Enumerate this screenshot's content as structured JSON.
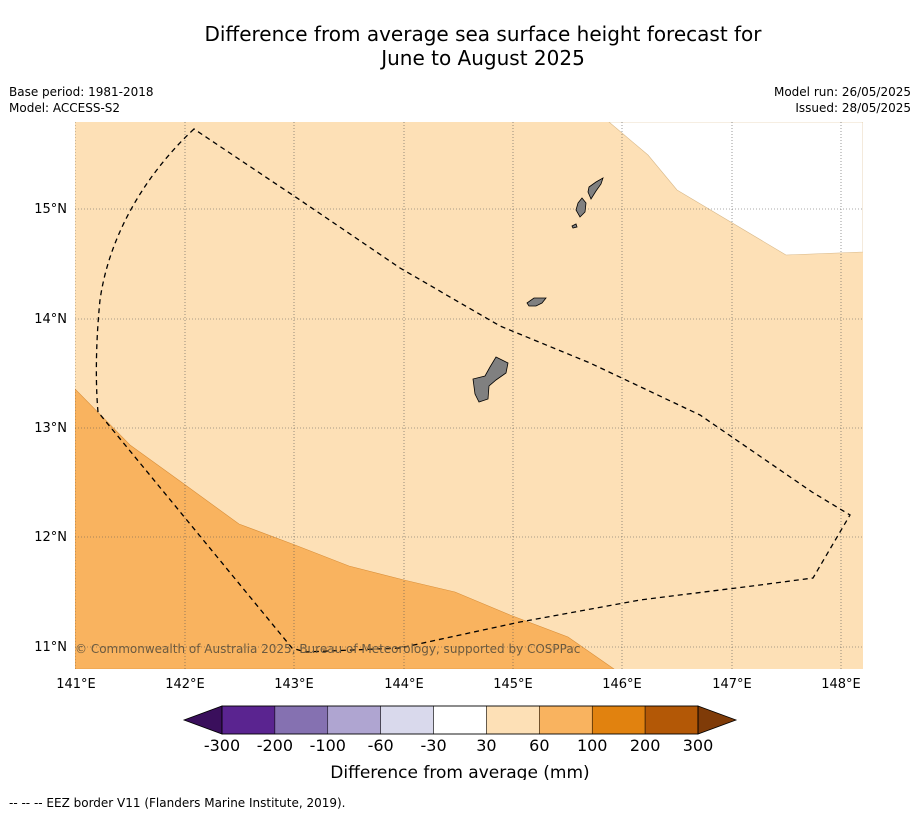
{
  "title": {
    "line1": "Difference from average sea surface height forecast for",
    "line2": "June to August 2025"
  },
  "meta": {
    "base_period": "Base period: 1981-2018",
    "model": "Model: ACCESS-S2",
    "model_run": "Model run: 26/05/2025",
    "issued": "Issued: 28/05/2025"
  },
  "copyright": "© Commonwealth of Australia 2025, Bureau of Meteorology, supported by COSPPac",
  "footer_note": "-- -- -- EEZ border V11 (Flanders Marine Institute, 2019).",
  "map": {
    "lon_labels": [
      "141°E",
      "142°E",
      "143°E",
      "144°E",
      "145°E",
      "146°E",
      "147°E",
      "148°E"
    ],
    "lat_labels": [
      "15°N",
      "14°N",
      "13°N",
      "12°N",
      "11°N"
    ],
    "lon_range": [
      141,
      148.2
    ],
    "lat_range": [
      10.8,
      15.8
    ]
  },
  "legend": {
    "title": "Difference from average (mm)",
    "tick_labels": [
      "-300",
      "-200",
      "-100",
      "-60",
      "-30",
      "30",
      "60",
      "100",
      "200",
      "300"
    ],
    "colors": [
      "#5a2490",
      "#8571b1",
      "#afa5d1",
      "#d9d9ec",
      "#ffffff",
      "#fde0b6",
      "#f9b35f",
      "#e1820f",
      "#b35806"
    ],
    "under_color": "#3a0f5c",
    "over_color": "#7f3b08"
  }
}
